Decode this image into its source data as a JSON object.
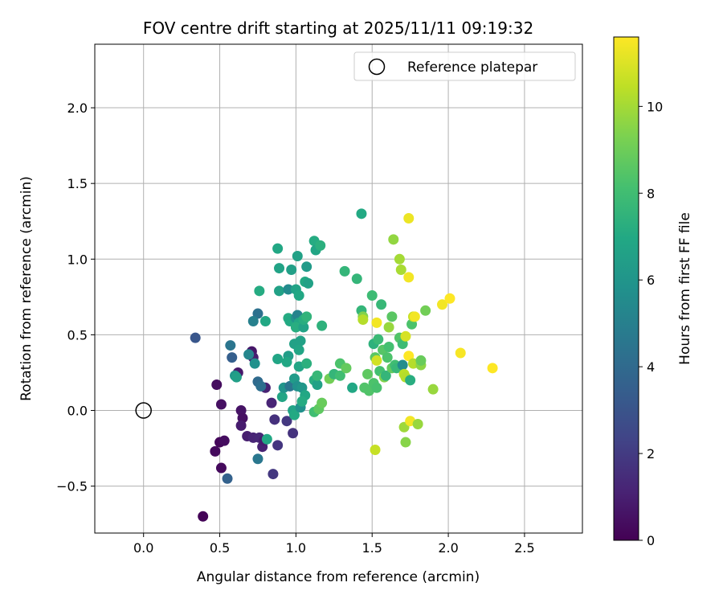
{
  "chart_data": {
    "type": "scatter",
    "title": "FOV centre drift starting at 2025/11/11 09:19:32",
    "xlabel": "Angular distance from reference (arcmin)",
    "ylabel": "Rotation from reference (arcmin)",
    "xlim": [
      -0.32,
      2.88
    ],
    "ylim": [
      -0.81,
      2.42
    ],
    "xticks": [
      0.0,
      0.5,
      1.0,
      1.5,
      2.0,
      2.5
    ],
    "xtick_labels": [
      "0.0",
      "0.5",
      "1.0",
      "1.5",
      "2.0",
      "2.5"
    ],
    "yticks": [
      -0.5,
      0.0,
      0.5,
      1.0,
      1.5,
      2.0
    ],
    "ytick_labels": [
      "−0.5",
      "0.0",
      "0.5",
      "1.0",
      "1.5",
      "2.0"
    ],
    "grid": true,
    "legend": {
      "location": "top-right",
      "entries": [
        "Reference platepar"
      ]
    },
    "reference": {
      "x": 0.0,
      "y": 0.0,
      "label": "Reference platepar"
    },
    "colorbar": {
      "label": "Hours from first FF file",
      "colormap": "viridis",
      "range": [
        0,
        11.6
      ],
      "ticks": [
        0,
        2,
        4,
        6,
        8,
        10
      ],
      "tick_labels": [
        "0",
        "2",
        "4",
        "6",
        "8",
        "10"
      ]
    },
    "points": [
      {
        "x": 0.39,
        "y": -0.7,
        "c": 0.1
      },
      {
        "x": 0.47,
        "y": -0.27,
        "c": 0.3
      },
      {
        "x": 0.5,
        "y": -0.21,
        "c": 0.2
      },
      {
        "x": 0.53,
        "y": -0.2,
        "c": 0.4
      },
      {
        "x": 0.51,
        "y": -0.38,
        "c": 0.3
      },
      {
        "x": 0.48,
        "y": 0.17,
        "c": 0.4
      },
      {
        "x": 0.51,
        "y": 0.04,
        "c": 0.5
      },
      {
        "x": 0.62,
        "y": 0.25,
        "c": 0.8
      },
      {
        "x": 0.64,
        "y": 0.0,
        "c": 0.6
      },
      {
        "x": 0.65,
        "y": -0.05,
        "c": 0.5
      },
      {
        "x": 0.64,
        "y": -0.1,
        "c": 0.9
      },
      {
        "x": 0.68,
        "y": -0.17,
        "c": 1.0
      },
      {
        "x": 0.72,
        "y": -0.18,
        "c": 1.2
      },
      {
        "x": 0.71,
        "y": 0.39,
        "c": 0.7
      },
      {
        "x": 0.72,
        "y": 0.35,
        "c": 1.0
      },
      {
        "x": 0.76,
        "y": -0.18,
        "c": 1.3
      },
      {
        "x": 0.78,
        "y": -0.24,
        "c": 1.1
      },
      {
        "x": 0.79,
        "y": -0.2,
        "c": 0.9
      },
      {
        "x": 0.8,
        "y": 0.15,
        "c": 1.1
      },
      {
        "x": 0.84,
        "y": 0.05,
        "c": 1.2
      },
      {
        "x": 0.86,
        "y": -0.06,
        "c": 1.6
      },
      {
        "x": 0.88,
        "y": -0.23,
        "c": 1.8
      },
      {
        "x": 0.85,
        "y": -0.42,
        "c": 1.9
      },
      {
        "x": 0.94,
        "y": -0.07,
        "c": 1.9
      },
      {
        "x": 0.98,
        "y": -0.15,
        "c": 1.7
      },
      {
        "x": 0.34,
        "y": 0.48,
        "c": 3.1
      },
      {
        "x": 0.55,
        "y": -0.45,
        "c": 3.6
      },
      {
        "x": 0.58,
        "y": 0.35,
        "c": 3.5
      },
      {
        "x": 0.57,
        "y": 0.43,
        "c": 4.5
      },
      {
        "x": 0.75,
        "y": 0.19,
        "c": 4.0
      },
      {
        "x": 0.77,
        "y": 0.16,
        "c": 4.2
      },
      {
        "x": 0.75,
        "y": -0.32,
        "c": 4.6
      },
      {
        "x": 0.75,
        "y": 0.64,
        "c": 4.3
      },
      {
        "x": 0.72,
        "y": 0.59,
        "c": 5.0
      },
      {
        "x": 0.69,
        "y": 0.37,
        "c": 5.3
      },
      {
        "x": 0.73,
        "y": 0.31,
        "c": 5.8
      },
      {
        "x": 0.6,
        "y": 0.23,
        "c": 6.0
      },
      {
        "x": 0.61,
        "y": 0.22,
        "c": 6.5
      },
      {
        "x": 0.81,
        "y": -0.19,
        "c": 6.9
      },
      {
        "x": 0.8,
        "y": 0.59,
        "c": 6.9
      },
      {
        "x": 0.76,
        "y": 0.79,
        "c": 7.1
      },
      {
        "x": 0.88,
        "y": 1.07,
        "c": 6.9
      },
      {
        "x": 0.89,
        "y": 0.94,
        "c": 6.7
      },
      {
        "x": 0.89,
        "y": 0.79,
        "c": 6.6
      },
      {
        "x": 0.88,
        "y": 0.34,
        "c": 6.8
      },
      {
        "x": 0.91,
        "y": 0.09,
        "c": 6.8
      },
      {
        "x": 0.92,
        "y": 0.15,
        "c": 6.0
      },
      {
        "x": 0.95,
        "y": 0.8,
        "c": 5.5
      },
      {
        "x": 0.95,
        "y": 0.61,
        "c": 7.1
      },
      {
        "x": 0.96,
        "y": 0.59,
        "c": 7.0
      },
      {
        "x": 0.95,
        "y": 0.36,
        "c": 6.4
      },
      {
        "x": 0.94,
        "y": 0.32,
        "c": 6.9
      },
      {
        "x": 0.96,
        "y": 0.16,
        "c": 4.5
      },
      {
        "x": 0.97,
        "y": 0.93,
        "c": 6.5
      },
      {
        "x": 0.99,
        "y": 0.44,
        "c": 6.6
      },
      {
        "x": 0.99,
        "y": 0.21,
        "c": 6.3
      },
      {
        "x": 0.98,
        "y": 0.0,
        "c": 6.7
      },
      {
        "x": 0.99,
        "y": -0.03,
        "c": 7.0
      },
      {
        "x": 1.0,
        "y": 0.8,
        "c": 6.7
      },
      {
        "x": 1.01,
        "y": 1.02,
        "c": 6.6
      },
      {
        "x": 1.0,
        "y": 0.61,
        "c": 6.0
      },
      {
        "x": 1.01,
        "y": 0.63,
        "c": 5.2
      },
      {
        "x": 1.02,
        "y": 0.58,
        "c": 6.9
      },
      {
        "x": 1.0,
        "y": 0.55,
        "c": 7.2
      },
      {
        "x": 1.03,
        "y": 0.46,
        "c": 6.6
      },
      {
        "x": 1.02,
        "y": 0.4,
        "c": 6.8
      },
      {
        "x": 1.02,
        "y": 0.29,
        "c": 6.8
      },
      {
        "x": 1.01,
        "y": 0.16,
        "c": 5.8
      },
      {
        "x": 1.04,
        "y": 0.15,
        "c": 6.1
      },
      {
        "x": 1.03,
        "y": 0.02,
        "c": 5.8
      },
      {
        "x": 1.05,
        "y": 0.55,
        "c": 6.7
      },
      {
        "x": 1.05,
        "y": 0.6,
        "c": 7.2
      },
      {
        "x": 1.06,
        "y": 0.85,
        "c": 7.0
      },
      {
        "x": 1.07,
        "y": 0.95,
        "c": 6.3
      },
      {
        "x": 1.08,
        "y": 0.84,
        "c": 6.6
      },
      {
        "x": 1.07,
        "y": 0.62,
        "c": 7.5
      },
      {
        "x": 1.07,
        "y": 0.31,
        "c": 7.3
      },
      {
        "x": 1.06,
        "y": 0.1,
        "c": 6.9
      },
      {
        "x": 1.04,
        "y": 0.06,
        "c": 7.1
      },
      {
        "x": 1.02,
        "y": 0.76,
        "c": 6.9
      },
      {
        "x": 1.12,
        "y": 1.12,
        "c": 7.1
      },
      {
        "x": 1.13,
        "y": 1.06,
        "c": 6.8
      },
      {
        "x": 1.16,
        "y": 1.09,
        "c": 7.3
      },
      {
        "x": 1.17,
        "y": 0.56,
        "c": 7.4
      },
      {
        "x": 1.12,
        "y": 0.2,
        "c": 7.2
      },
      {
        "x": 1.14,
        "y": 0.17,
        "c": 6.6
      },
      {
        "x": 1.14,
        "y": 0.23,
        "c": 7.7
      },
      {
        "x": 1.12,
        "y": -0.01,
        "c": 8.0
      },
      {
        "x": 1.15,
        "y": 0.01,
        "c": 8.7
      },
      {
        "x": 1.17,
        "y": 0.05,
        "c": 8.9
      },
      {
        "x": 1.22,
        "y": 0.21,
        "c": 9.1
      },
      {
        "x": 1.25,
        "y": 0.24,
        "c": 7.6
      },
      {
        "x": 1.29,
        "y": 0.31,
        "c": 8.3
      },
      {
        "x": 1.29,
        "y": 0.23,
        "c": 8.0
      },
      {
        "x": 1.32,
        "y": 0.92,
        "c": 7.6
      },
      {
        "x": 1.33,
        "y": 0.28,
        "c": 8.8
      },
      {
        "x": 1.37,
        "y": 0.15,
        "c": 6.9
      },
      {
        "x": 1.4,
        "y": 0.87,
        "c": 7.6
      },
      {
        "x": 1.43,
        "y": 1.3,
        "c": 7.0
      },
      {
        "x": 1.43,
        "y": 0.66,
        "c": 7.6
      },
      {
        "x": 1.44,
        "y": 0.62,
        "c": 9.4
      },
      {
        "x": 1.44,
        "y": 0.6,
        "c": 10.3
      },
      {
        "x": 1.45,
        "y": 0.15,
        "c": 8.4
      },
      {
        "x": 1.47,
        "y": 0.24,
        "c": 8.7
      },
      {
        "x": 1.48,
        "y": 0.13,
        "c": 8.4
      },
      {
        "x": 1.5,
        "y": 0.76,
        "c": 7.9
      },
      {
        "x": 1.51,
        "y": 0.44,
        "c": 7.4
      },
      {
        "x": 1.51,
        "y": 0.18,
        "c": 8.3
      },
      {
        "x": 1.52,
        "y": 0.35,
        "c": 8.6
      },
      {
        "x": 1.53,
        "y": 0.15,
        "c": 8.2
      },
      {
        "x": 1.52,
        "y": -0.26,
        "c": 10.6
      },
      {
        "x": 1.53,
        "y": 0.33,
        "c": 10.8
      },
      {
        "x": 1.53,
        "y": 0.58,
        "c": 11.4
      },
      {
        "x": 1.54,
        "y": 0.47,
        "c": 7.8
      },
      {
        "x": 1.55,
        "y": 0.26,
        "c": 8.1
      },
      {
        "x": 1.56,
        "y": 0.7,
        "c": 7.7
      },
      {
        "x": 1.57,
        "y": 0.4,
        "c": 8.5
      },
      {
        "x": 1.58,
        "y": 0.22,
        "c": 9.4
      },
      {
        "x": 1.59,
        "y": 0.23,
        "c": 7.6
      },
      {
        "x": 1.6,
        "y": 0.35,
        "c": 8.3
      },
      {
        "x": 1.61,
        "y": 0.55,
        "c": 9.8
      },
      {
        "x": 1.61,
        "y": 0.42,
        "c": 8.1
      },
      {
        "x": 1.63,
        "y": 0.62,
        "c": 8.6
      },
      {
        "x": 1.63,
        "y": 0.28,
        "c": 8.8
      },
      {
        "x": 1.64,
        "y": 1.13,
        "c": 9.7
      },
      {
        "x": 1.65,
        "y": 0.3,
        "c": 8.0
      },
      {
        "x": 1.66,
        "y": 0.28,
        "c": 7.7
      },
      {
        "x": 1.68,
        "y": 0.48,
        "c": 8.4
      },
      {
        "x": 1.68,
        "y": 1.0,
        "c": 10.0
      },
      {
        "x": 1.69,
        "y": 0.93,
        "c": 10.1
      },
      {
        "x": 1.7,
        "y": 0.44,
        "c": 7.9
      },
      {
        "x": 1.7,
        "y": 0.3,
        "c": 5.6
      },
      {
        "x": 1.71,
        "y": 0.24,
        "c": 10.4
      },
      {
        "x": 1.71,
        "y": -0.11,
        "c": 9.9
      },
      {
        "x": 1.72,
        "y": 0.22,
        "c": 10.3
      },
      {
        "x": 1.72,
        "y": 0.49,
        "c": 10.9
      },
      {
        "x": 1.72,
        "y": -0.21,
        "c": 9.5
      },
      {
        "x": 1.74,
        "y": 1.27,
        "c": 11.3
      },
      {
        "x": 1.74,
        "y": 0.88,
        "c": 11.4
      },
      {
        "x": 1.74,
        "y": 0.36,
        "c": 11.6
      },
      {
        "x": 1.75,
        "y": -0.07,
        "c": 11.4
      },
      {
        "x": 1.75,
        "y": 0.2,
        "c": 7.2
      },
      {
        "x": 1.76,
        "y": 0.57,
        "c": 8.3
      },
      {
        "x": 1.77,
        "y": 0.62,
        "c": 10.6
      },
      {
        "x": 1.77,
        "y": 0.31,
        "c": 10.3
      },
      {
        "x": 1.78,
        "y": 0.62,
        "c": 11.4
      },
      {
        "x": 1.8,
        "y": -0.09,
        "c": 9.8
      },
      {
        "x": 1.82,
        "y": 0.3,
        "c": 9.6
      },
      {
        "x": 1.82,
        "y": 0.33,
        "c": 8.9
      },
      {
        "x": 1.85,
        "y": 0.66,
        "c": 9.1
      },
      {
        "x": 1.9,
        "y": 0.14,
        "c": 9.8
      },
      {
        "x": 1.96,
        "y": 0.7,
        "c": 11.4
      },
      {
        "x": 2.01,
        "y": 0.74,
        "c": 11.6
      },
      {
        "x": 2.08,
        "y": 0.38,
        "c": 11.5
      },
      {
        "x": 2.29,
        "y": 0.28,
        "c": 11.6
      }
    ]
  }
}
